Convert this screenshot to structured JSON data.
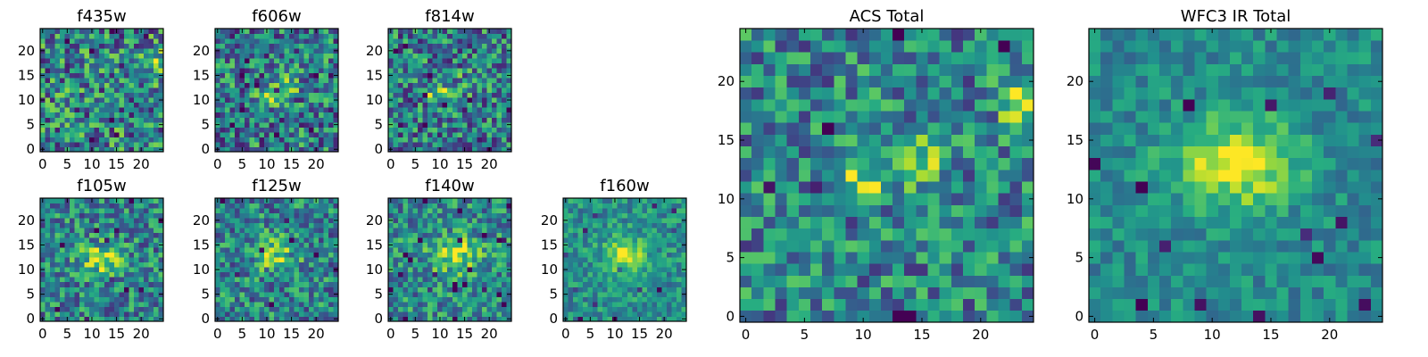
{
  "chart_data": [
    {
      "type": "heatmap",
      "title": "f435w",
      "xlim": [
        -0.5,
        24.5
      ],
      "ylim": [
        -0.5,
        24.5
      ],
      "xticks": [
        0,
        5,
        10,
        15,
        20
      ],
      "yticks": [
        0,
        5,
        10,
        15,
        20
      ],
      "xtick_labels": [
        "0",
        "5",
        "10",
        "15",
        "20"
      ],
      "ytick_labels": [
        "0",
        "5",
        "10",
        "15",
        "20"
      ],
      "grid_size": 25,
      "colormap": "viridis",
      "seed": 11,
      "blobs": [
        {
          "x": 23,
          "y": 18,
          "sx": 1.2,
          "sy": 1.5,
          "amp": 0.35
        }
      ],
      "noise": 0.38,
      "base": 0.45
    },
    {
      "type": "heatmap",
      "title": "f606w",
      "xlim": [
        -0.5,
        24.5
      ],
      "ylim": [
        -0.5,
        24.5
      ],
      "xticks": [
        0,
        5,
        10,
        15,
        20
      ],
      "yticks": [
        0,
        5,
        10,
        15,
        20
      ],
      "xtick_labels": [
        "0",
        "5",
        "10",
        "15",
        "20"
      ],
      "ytick_labels": [
        "0",
        "5",
        "10",
        "15",
        "20"
      ],
      "grid_size": 25,
      "colormap": "viridis",
      "seed": 23,
      "blobs": [
        {
          "x": 10,
          "y": 11,
          "sx": 2.0,
          "sy": 1.2,
          "amp": 0.4
        },
        {
          "x": 15,
          "y": 13,
          "sx": 1.6,
          "sy": 1.6,
          "amp": 0.25
        }
      ],
      "noise": 0.36,
      "base": 0.42
    },
    {
      "type": "heatmap",
      "title": "f814w",
      "xlim": [
        -0.5,
        24.5
      ],
      "ylim": [
        -0.5,
        24.5
      ],
      "xticks": [
        0,
        5,
        10,
        15,
        20
      ],
      "yticks": [
        0,
        5,
        10,
        15,
        20
      ],
      "xtick_labels": [
        "0",
        "5",
        "10",
        "15",
        "20"
      ],
      "ytick_labels": [
        "0",
        "5",
        "10",
        "15",
        "20"
      ],
      "grid_size": 25,
      "colormap": "viridis",
      "seed": 37,
      "blobs": [
        {
          "x": 10,
          "y": 11,
          "sx": 1.8,
          "sy": 1.2,
          "amp": 0.42
        },
        {
          "x": 15,
          "y": 13,
          "sx": 1.5,
          "sy": 1.5,
          "amp": 0.2
        }
      ],
      "noise": 0.35,
      "base": 0.42
    },
    {
      "type": "heatmap",
      "title": "f105w",
      "xlim": [
        -0.5,
        24.5
      ],
      "ylim": [
        -0.5,
        24.5
      ],
      "xticks": [
        0,
        5,
        10,
        15,
        20
      ],
      "yticks": [
        0,
        5,
        10,
        15,
        20
      ],
      "xtick_labels": [
        "0",
        "5",
        "10",
        "15",
        "20"
      ],
      "ytick_labels": [
        "0",
        "5",
        "10",
        "15",
        "20"
      ],
      "grid_size": 25,
      "colormap": "viridis",
      "seed": 41,
      "blobs": [
        {
          "x": 12,
          "y": 12,
          "sx": 3.0,
          "sy": 2.2,
          "amp": 0.4
        }
      ],
      "noise": 0.3,
      "base": 0.45
    },
    {
      "type": "heatmap",
      "title": "f125w",
      "xlim": [
        -0.5,
        24.5
      ],
      "ylim": [
        -0.5,
        24.5
      ],
      "xticks": [
        0,
        5,
        10,
        15,
        20
      ],
      "yticks": [
        0,
        5,
        10,
        15,
        20
      ],
      "xtick_labels": [
        "0",
        "5",
        "10",
        "15",
        "20"
      ],
      "ytick_labels": [
        "0",
        "5",
        "10",
        "15",
        "20"
      ],
      "grid_size": 25,
      "colormap": "viridis",
      "seed": 53,
      "blobs": [
        {
          "x": 12,
          "y": 13,
          "sx": 3.0,
          "sy": 2.5,
          "amp": 0.35
        }
      ],
      "noise": 0.3,
      "base": 0.45
    },
    {
      "type": "heatmap",
      "title": "f140w",
      "xlim": [
        -0.5,
        24.5
      ],
      "ylim": [
        -0.5,
        24.5
      ],
      "xticks": [
        0,
        5,
        10,
        15,
        20
      ],
      "yticks": [
        0,
        5,
        10,
        15,
        20
      ],
      "xtick_labels": [
        "0",
        "5",
        "10",
        "15",
        "20"
      ],
      "ytick_labels": [
        "0",
        "5",
        "10",
        "15",
        "20"
      ],
      "grid_size": 25,
      "colormap": "viridis",
      "seed": 67,
      "blobs": [
        {
          "x": 13,
          "y": 13,
          "sx": 3.5,
          "sy": 2.5,
          "amp": 0.4
        }
      ],
      "noise": 0.28,
      "base": 0.48
    },
    {
      "type": "heatmap",
      "title": "f160w",
      "xlim": [
        -0.5,
        24.5
      ],
      "ylim": [
        -0.5,
        24.5
      ],
      "xticks": [
        0,
        5,
        10,
        15,
        20
      ],
      "yticks": [
        0,
        5,
        10,
        15,
        20
      ],
      "xtick_labels": [
        "0",
        "5",
        "10",
        "15",
        "20"
      ],
      "ytick_labels": [
        "0",
        "5",
        "10",
        "15",
        "20"
      ],
      "grid_size": 25,
      "colormap": "viridis",
      "seed": 79,
      "blobs": [
        {
          "x": 12,
          "y": 13,
          "sx": 2.8,
          "sy": 2.5,
          "amp": 0.45
        }
      ],
      "noise": 0.2,
      "base": 0.5
    },
    {
      "type": "heatmap",
      "title": "ACS Total",
      "xlim": [
        -0.5,
        24.5
      ],
      "ylim": [
        -0.5,
        24.5
      ],
      "xticks": [
        0,
        5,
        10,
        15,
        20
      ],
      "yticks": [
        0,
        5,
        10,
        15,
        20
      ],
      "xtick_labels": [
        "0",
        "5",
        "10",
        "15",
        "20"
      ],
      "ytick_labels": [
        "0",
        "5",
        "10",
        "15",
        "20"
      ],
      "grid_size": 25,
      "colormap": "viridis",
      "seed": 97,
      "blobs": [
        {
          "x": 10,
          "y": 11.5,
          "sx": 1.8,
          "sy": 1.0,
          "amp": 0.45
        },
        {
          "x": 15.5,
          "y": 13,
          "sx": 1.4,
          "sy": 1.6,
          "amp": 0.3
        },
        {
          "x": 23,
          "y": 18,
          "sx": 1.0,
          "sy": 1.2,
          "amp": 0.45
        }
      ],
      "noise": 0.3,
      "base": 0.45
    },
    {
      "type": "heatmap",
      "title": "WFC3 IR Total",
      "xlim": [
        -0.5,
        24.5
      ],
      "ylim": [
        -0.5,
        24.5
      ],
      "xticks": [
        0,
        5,
        10,
        15,
        20
      ],
      "yticks": [
        0,
        5,
        10,
        15,
        20
      ],
      "xtick_labels": [
        "0",
        "5",
        "10",
        "15",
        "20"
      ],
      "ytick_labels": [
        "0",
        "5",
        "10",
        "15",
        "20"
      ],
      "grid_size": 25,
      "colormap": "viridis",
      "seed": 131,
      "blobs": [
        {
          "x": 12,
          "y": 13,
          "sx": 3.6,
          "sy": 2.5,
          "amp": 0.5
        }
      ],
      "noise": 0.16,
      "base": 0.48
    }
  ]
}
